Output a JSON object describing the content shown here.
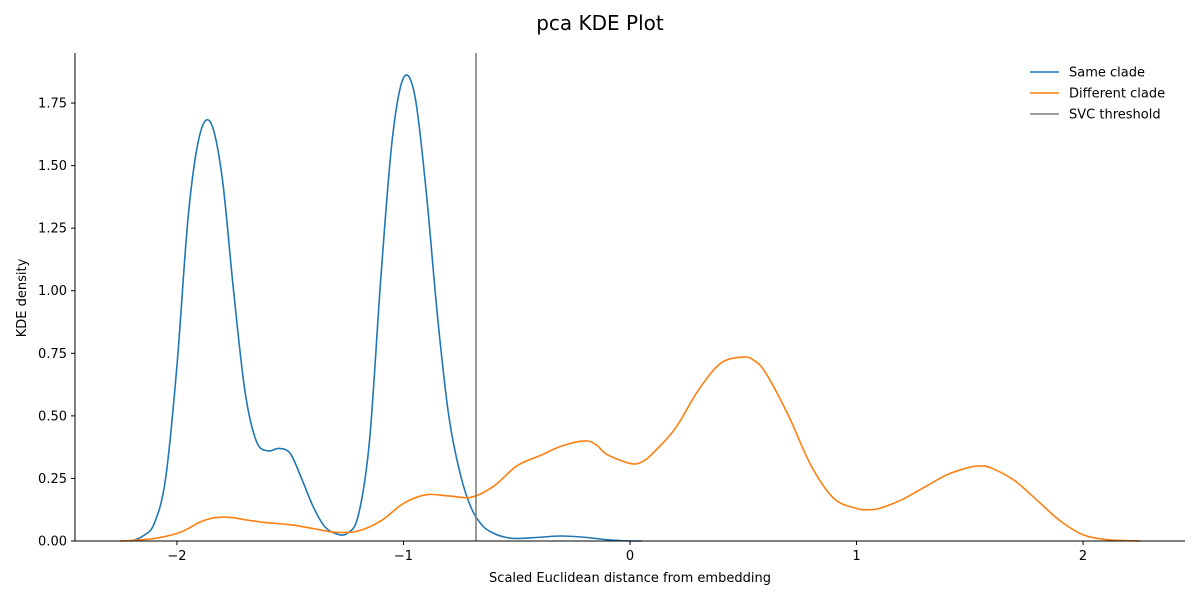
{
  "chart_data": {
    "type": "line",
    "title": "pca KDE Plot",
    "xlabel": "Scaled Euclidean distance from embedding",
    "ylabel": "KDE density",
    "xlim": [
      -2.45,
      2.45
    ],
    "ylim": [
      0,
      1.95
    ],
    "xticks": [
      -2,
      -1,
      0,
      1,
      2
    ],
    "xtick_labels": [
      "−2",
      "−1",
      "0",
      "1",
      "2"
    ],
    "yticks": [
      0,
      0.25,
      0.5,
      0.75,
      1.0,
      1.25,
      1.5,
      1.75
    ],
    "ytick_labels": [
      "0.00",
      "0.25",
      "0.50",
      "0.75",
      "1.00",
      "1.25",
      "1.50",
      "1.75"
    ],
    "grid": false,
    "legend_position": "top-right",
    "series": [
      {
        "name": "Same clade",
        "color": "#1f77b4",
        "x": [
          -2.2,
          -2.15,
          -2.1,
          -2.05,
          -2.0,
          -1.95,
          -1.9,
          -1.85,
          -1.8,
          -1.75,
          -1.7,
          -1.65,
          -1.6,
          -1.55,
          -1.5,
          -1.45,
          -1.4,
          -1.35,
          -1.3,
          -1.25,
          -1.2,
          -1.15,
          -1.1,
          -1.05,
          -1.0,
          -0.95,
          -0.9,
          -0.85,
          -0.8,
          -0.75,
          -0.7,
          -0.65,
          -0.6,
          -0.55,
          -0.5,
          -0.4,
          -0.3,
          -0.2,
          -0.1,
          0.0,
          0.05
        ],
        "y": [
          0.0,
          0.02,
          0.07,
          0.25,
          0.7,
          1.3,
          1.62,
          1.67,
          1.45,
          1.0,
          0.6,
          0.4,
          0.36,
          0.37,
          0.35,
          0.25,
          0.14,
          0.06,
          0.03,
          0.03,
          0.1,
          0.4,
          1.05,
          1.6,
          1.85,
          1.78,
          1.4,
          0.9,
          0.5,
          0.27,
          0.13,
          0.06,
          0.03,
          0.015,
          0.01,
          0.015,
          0.02,
          0.015,
          0.005,
          0.0,
          0.0
        ]
      },
      {
        "name": "Different clade",
        "color": "#ff7f0e",
        "x": [
          -2.25,
          -2.2,
          -2.1,
          -2.0,
          -1.95,
          -1.9,
          -1.85,
          -1.8,
          -1.75,
          -1.7,
          -1.6,
          -1.5,
          -1.4,
          -1.3,
          -1.2,
          -1.1,
          -1.0,
          -0.9,
          -0.8,
          -0.7,
          -0.6,
          -0.5,
          -0.4,
          -0.3,
          -0.2,
          -0.15,
          -0.1,
          0.0,
          0.05,
          0.1,
          0.2,
          0.3,
          0.4,
          0.5,
          0.55,
          0.6,
          0.7,
          0.8,
          0.9,
          1.0,
          1.05,
          1.1,
          1.2,
          1.3,
          1.4,
          1.5,
          1.55,
          1.6,
          1.7,
          1.8,
          1.9,
          2.0,
          2.1,
          2.2,
          2.25
        ],
        "y": [
          0.0,
          0.002,
          0.01,
          0.03,
          0.05,
          0.075,
          0.09,
          0.095,
          0.093,
          0.085,
          0.073,
          0.065,
          0.05,
          0.035,
          0.04,
          0.08,
          0.15,
          0.185,
          0.18,
          0.175,
          0.22,
          0.3,
          0.34,
          0.38,
          0.4,
          0.385,
          0.345,
          0.31,
          0.315,
          0.35,
          0.45,
          0.6,
          0.71,
          0.735,
          0.72,
          0.67,
          0.5,
          0.3,
          0.17,
          0.13,
          0.125,
          0.13,
          0.165,
          0.215,
          0.265,
          0.295,
          0.3,
          0.29,
          0.24,
          0.16,
          0.08,
          0.025,
          0.006,
          0.001,
          0.0
        ]
      }
    ],
    "vlines": [
      {
        "name": "SVC threshold",
        "x": -0.68,
        "color": "#7f7f7f"
      }
    ]
  }
}
